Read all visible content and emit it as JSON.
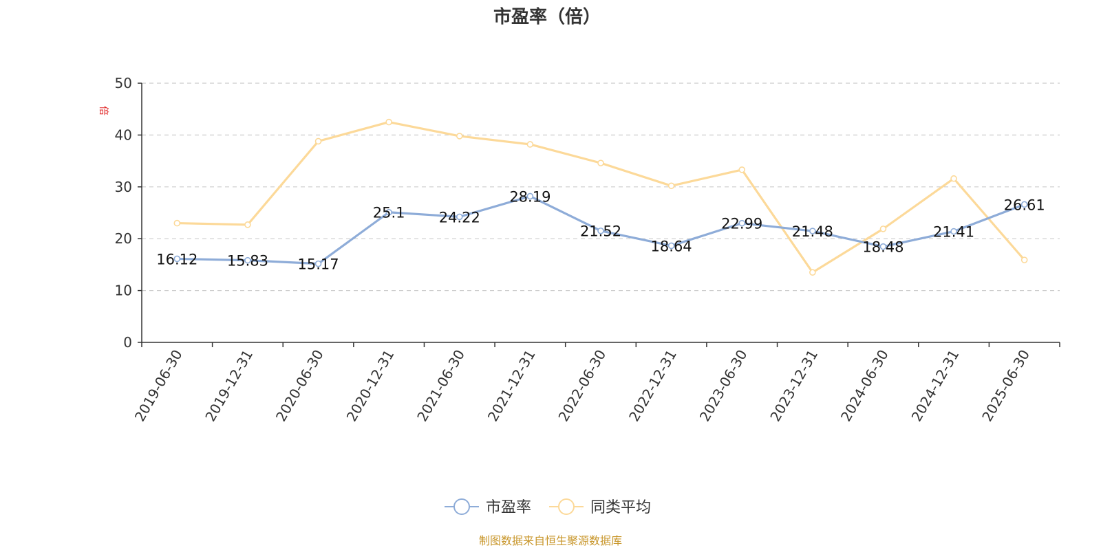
{
  "chart_data": {
    "type": "line",
    "title": "市盈率（倍）",
    "unit": "倍",
    "x": [
      "2019-06-30",
      "2019-12-31",
      "2020-06-30",
      "2020-12-31",
      "2021-06-30",
      "2021-12-31",
      "2022-06-30",
      "2022-12-31",
      "2023-06-30",
      "2023-12-31",
      "2024-06-30",
      "2024-12-31",
      "2025-06-30"
    ],
    "ylim": [
      0,
      50
    ],
    "yticks": [
      0,
      10,
      20,
      30,
      40,
      50
    ],
    "grid": true,
    "legend_position": "bottom",
    "series": [
      {
        "name": "市盈率",
        "color": "#8eacd8",
        "values": [
          16.12,
          15.83,
          15.17,
          25.1,
          24.22,
          28.19,
          21.52,
          18.64,
          22.99,
          21.48,
          18.48,
          21.41,
          26.61
        ],
        "labels": [
          "16.12",
          "15.83",
          "15.17",
          "25.1",
          "24.22",
          "28.19",
          "21.52",
          "18.64",
          "22.99",
          "21.48",
          "18.48",
          "21.41",
          "26.61"
        ]
      },
      {
        "name": "同类平均",
        "color": "#fcd999",
        "values": [
          23.0,
          22.7,
          38.8,
          42.5,
          39.8,
          38.2,
          34.6,
          30.2,
          33.3,
          13.5,
          21.9,
          31.6,
          15.9
        ]
      }
    ]
  },
  "source": "制图数据来自恒生聚源数据库"
}
